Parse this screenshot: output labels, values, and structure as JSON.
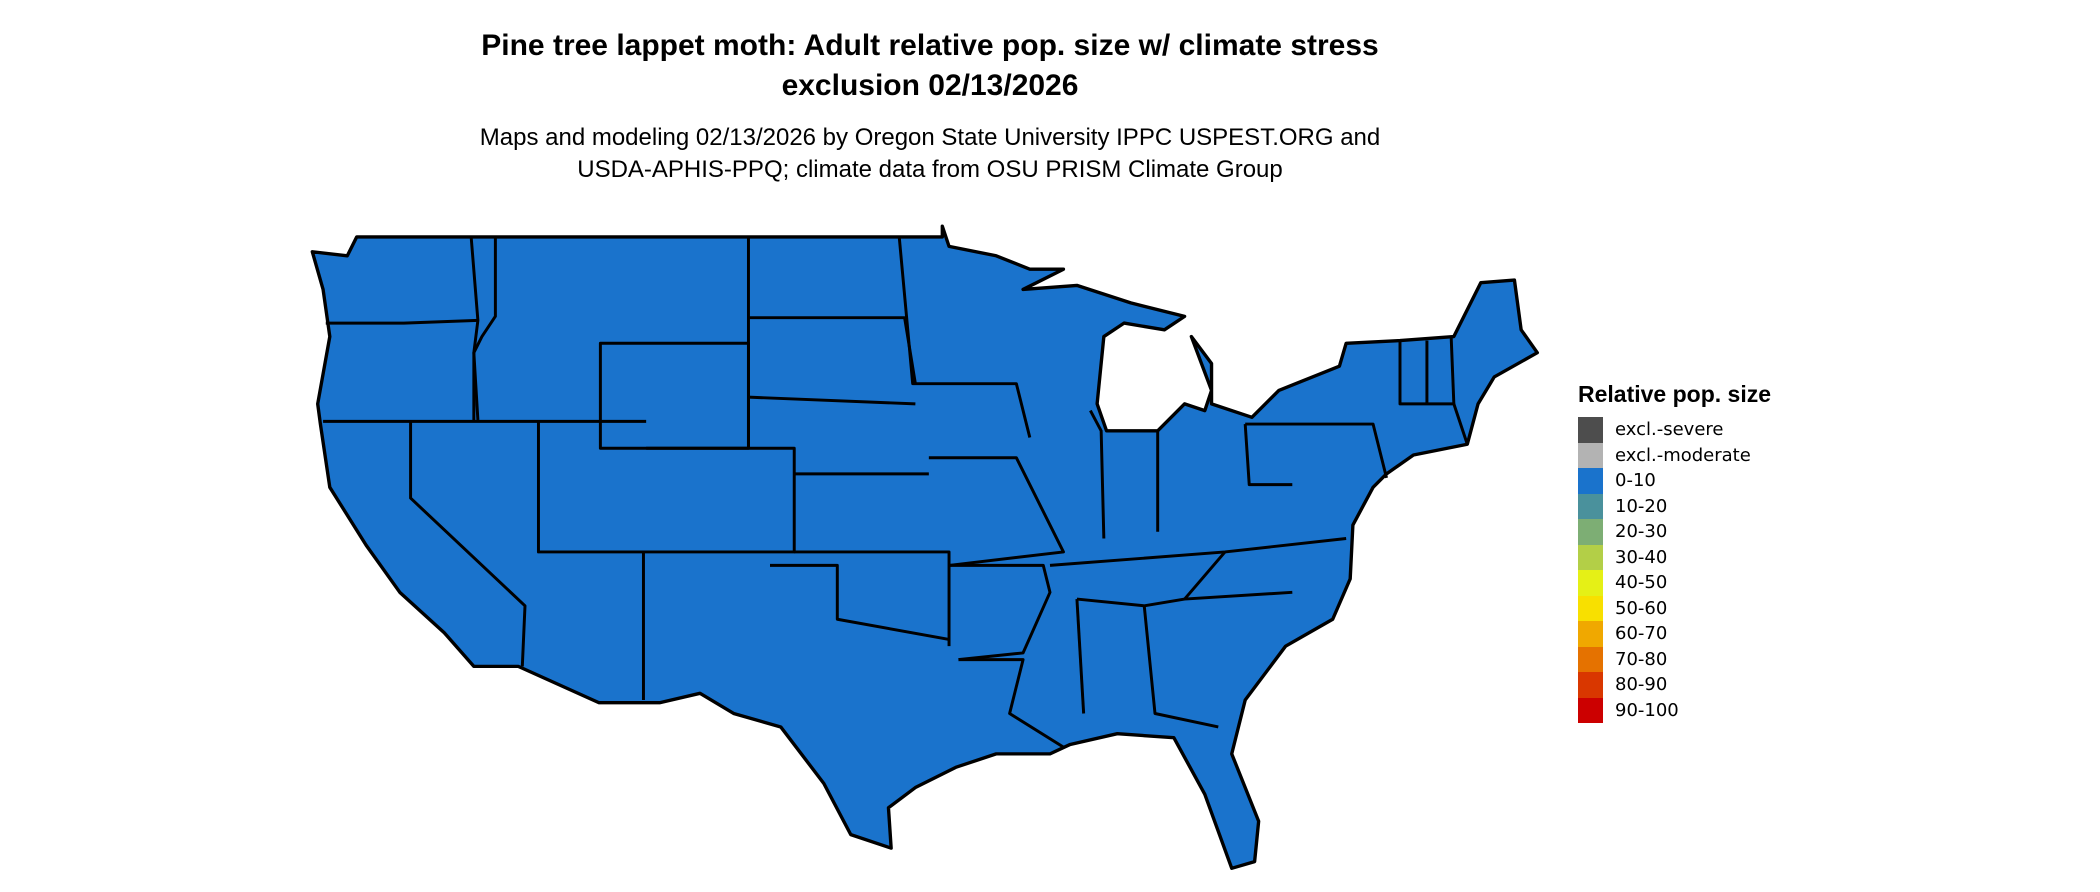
{
  "title_line1": "Pine tree lappet moth: Adult relative pop. size w/ climate stress",
  "title_line2": "exclusion 02/13/2026",
  "subtitle_line1": "Maps and modeling 02/13/2026 by Oregon State University IPPC USPEST.ORG and",
  "subtitle_line2": "USDA-APHIS-PPQ; climate data from OSU PRISM Climate Group",
  "map": {
    "region": "Contiguous United States",
    "dominant_class": "0-10",
    "fill_color": "#1a73cc",
    "border_color": "#000000"
  },
  "legend": {
    "title": "Relative pop. size",
    "items": [
      {
        "label": "excl.-severe",
        "color": "#4d4d4d"
      },
      {
        "label": "excl.-moderate",
        "color": "#b3b3b3"
      },
      {
        "label": "0-10",
        "color": "#1a73cc"
      },
      {
        "label": "10-20",
        "color": "#4a919c"
      },
      {
        "label": "20-30",
        "color": "#7dae74"
      },
      {
        "label": "30-40",
        "color": "#b3cf47"
      },
      {
        "label": "40-50",
        "color": "#e5f016"
      },
      {
        "label": "50-60",
        "color": "#f8e000"
      },
      {
        "label": "60-70",
        "color": "#f0a800"
      },
      {
        "label": "70-80",
        "color": "#e57200"
      },
      {
        "label": "80-90",
        "color": "#d93700"
      },
      {
        "label": "90-100",
        "color": "#cc0000"
      }
    ]
  }
}
